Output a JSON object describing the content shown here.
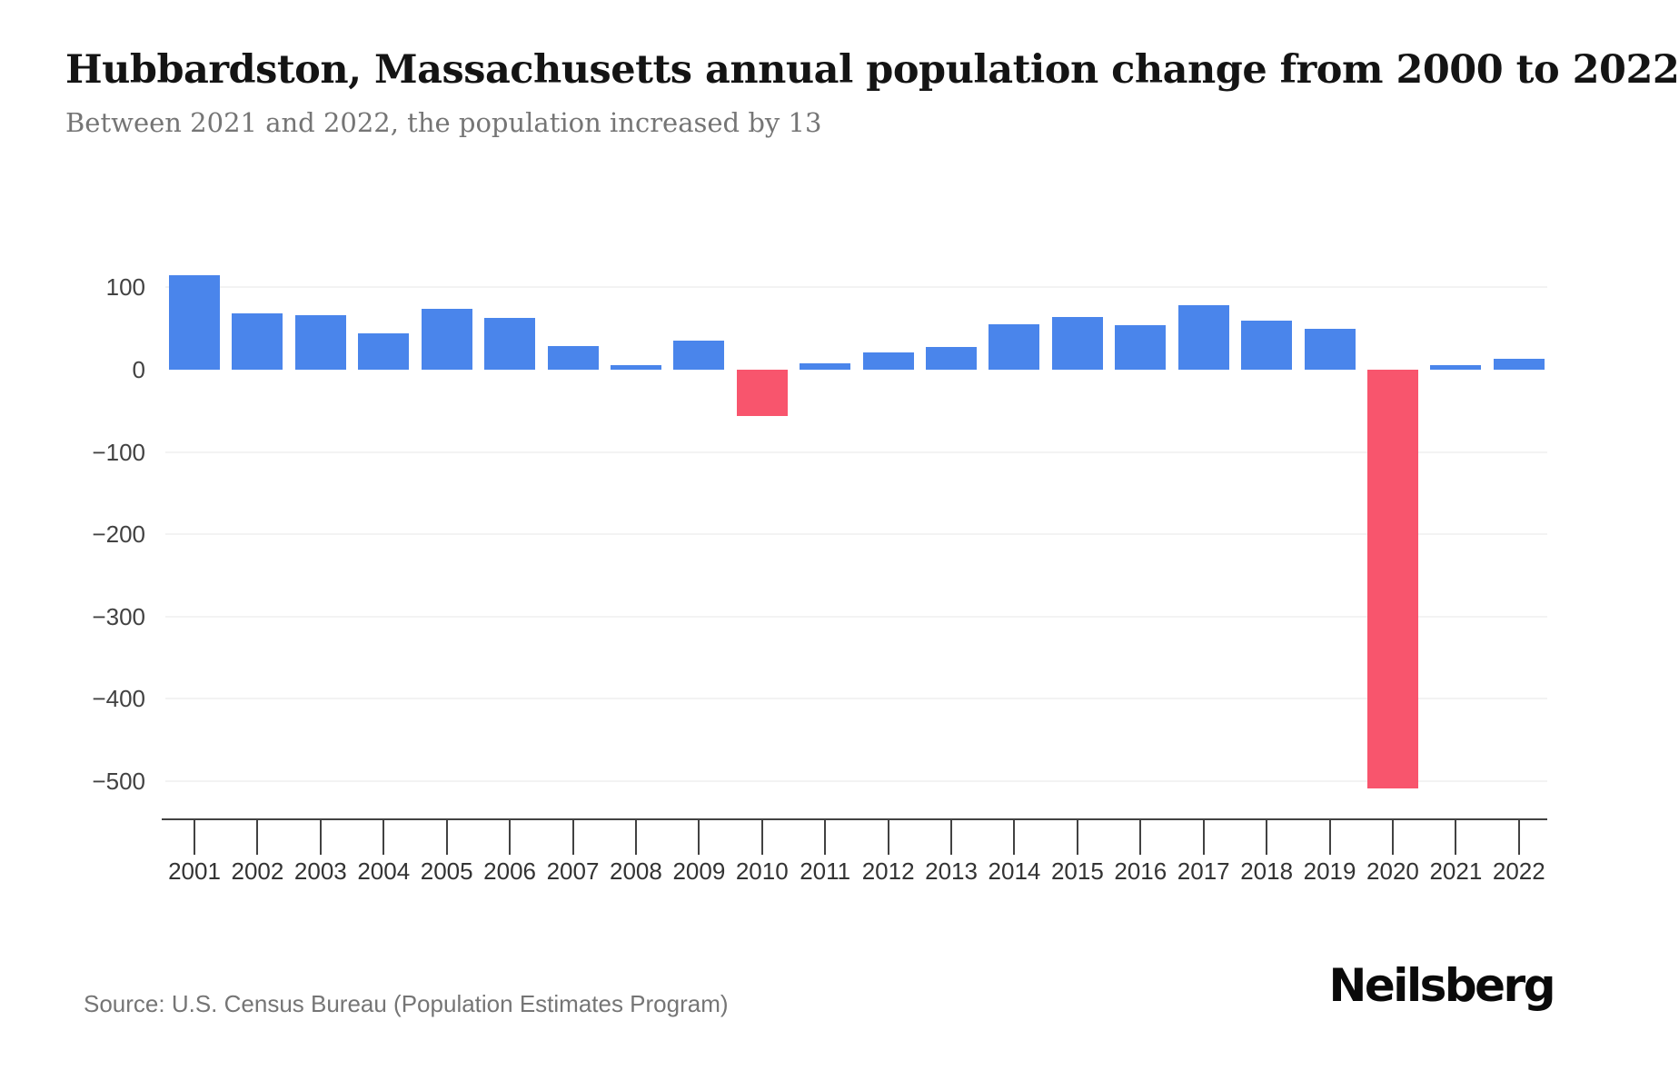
{
  "header": {
    "title": "Hubbardston, Massachusetts annual population change from 2000 to 2022",
    "subtitle": "Between 2021 and 2022, the population increased by 13"
  },
  "chart_data": {
    "type": "bar",
    "title": "Hubbardston, Massachusetts annual population change from 2000 to 2022",
    "subtitle": "Between 2021 and 2022, the population increased by 13",
    "xlabel": "",
    "ylabel": "",
    "categories": [
      "2001",
      "2002",
      "2003",
      "2004",
      "2005",
      "2006",
      "2007",
      "2008",
      "2009",
      "2010",
      "2011",
      "2012",
      "2013",
      "2014",
      "2015",
      "2016",
      "2017",
      "2018",
      "2019",
      "2020",
      "2021",
      "2022"
    ],
    "values": [
      115,
      69,
      66,
      44,
      74,
      63,
      29,
      5,
      35,
      -56,
      8,
      21,
      28,
      55,
      64,
      54,
      78,
      60,
      50,
      -509,
      6,
      13
    ],
    "ylim": [
      -560,
      130
    ],
    "y_ticks": [
      {
        "label": "100",
        "value": 100
      },
      {
        "label": "0",
        "value": 0
      },
      {
        "label": "−100",
        "value": -100
      },
      {
        "label": "−200",
        "value": -200
      },
      {
        "label": "−300",
        "value": -300
      },
      {
        "label": "−400",
        "value": -400
      },
      {
        "label": "−500",
        "value": -500
      }
    ],
    "y_gridlines": [
      100,
      -100,
      -200,
      -300,
      -400,
      -500
    ],
    "grid": "horizontal-only, light gray, no zero line",
    "legend": "none",
    "colors": {
      "positive": "#4A85EB",
      "negative": "#F8556D"
    }
  },
  "footer": {
    "source": "Source: U.S. Census Bureau (Population Estimates Program)",
    "brand": "Neilsberg"
  }
}
